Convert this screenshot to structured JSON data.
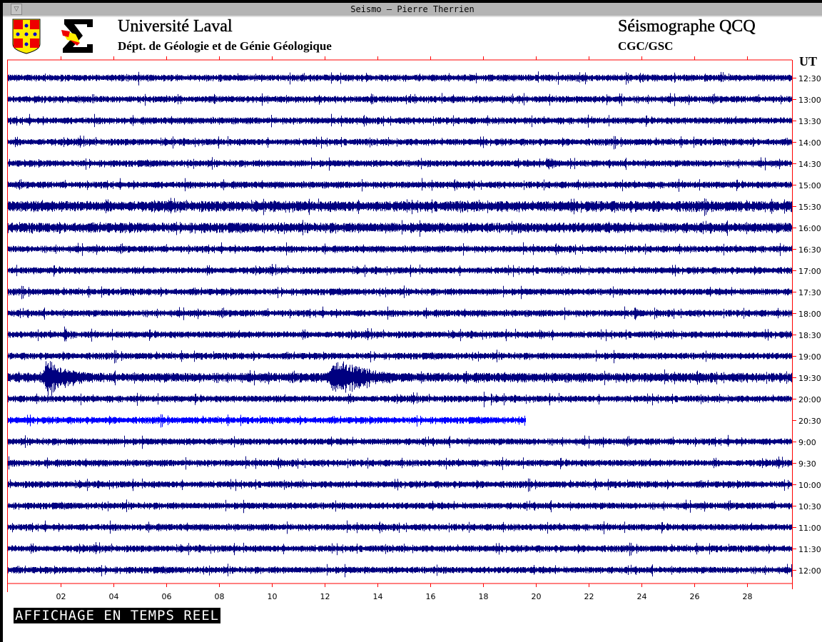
{
  "window": {
    "title": "Seismo – Pierre Therrien",
    "menu_icon": "triangle-down-icon"
  },
  "header": {
    "university": "Université Laval",
    "department": "Dépt. de Géologie et de Génie Géologique",
    "station": "Séismographe QCQ",
    "agency": "CGC/GSC",
    "logos": [
      "laval-crest-logo",
      "sigma-department-logo"
    ]
  },
  "plot": {
    "time_zone_label": "UT",
    "x_ticks": [
      "02",
      "04",
      "06",
      "08",
      "10",
      "12",
      "14",
      "16",
      "18",
      "20",
      "22",
      "24",
      "26",
      "28"
    ],
    "minutes_per_line": 30,
    "colors": {
      "frame": "#ff0000",
      "trace": "#000080",
      "current_trace": "#0000ff"
    },
    "traces": [
      {
        "label": "12:30"
      },
      {
        "label": "13:00"
      },
      {
        "label": "13:30"
      },
      {
        "label": "14:00"
      },
      {
        "label": "14:30",
        "events": [
          {
            "minute": 20.3,
            "amp": 9,
            "dur": 1.2
          }
        ]
      },
      {
        "label": "15:00"
      },
      {
        "label": "15:30",
        "noise": 1.6
      },
      {
        "label": "16:00",
        "noise": 1.5
      },
      {
        "label": "16:30"
      },
      {
        "label": "17:00"
      },
      {
        "label": "17:30"
      },
      {
        "label": "18:00",
        "events": [
          {
            "minute": 23.7,
            "amp": 11,
            "dur": 0.4
          }
        ]
      },
      {
        "label": "18:30",
        "events": [
          {
            "minute": 2.1,
            "amp": 14,
            "dur": 0.3
          },
          {
            "minute": 20.1,
            "amp": 9,
            "dur": 0.3
          }
        ]
      },
      {
        "label": "19:00"
      },
      {
        "label": "19:30",
        "noise": 1.4,
        "events": [
          {
            "minute": 1.2,
            "amp": 26,
            "dur": 2.5
          },
          {
            "minute": 12.0,
            "amp": 28,
            "dur": 3.5
          }
        ]
      },
      {
        "label": "20:00",
        "events": [
          {
            "minute": 18.0,
            "amp": 12,
            "dur": 0.2
          }
        ]
      },
      {
        "label": "20:30",
        "current": true,
        "end_minute": 19.6
      },
      {
        "label": "9:00"
      },
      {
        "label": "9:30"
      },
      {
        "label": "10:00"
      },
      {
        "label": "10:30"
      },
      {
        "label": "11:00"
      },
      {
        "label": "11:30"
      },
      {
        "label": "12:00"
      }
    ]
  },
  "status_banner": "AFFICHAGE EN TEMPS REEL"
}
